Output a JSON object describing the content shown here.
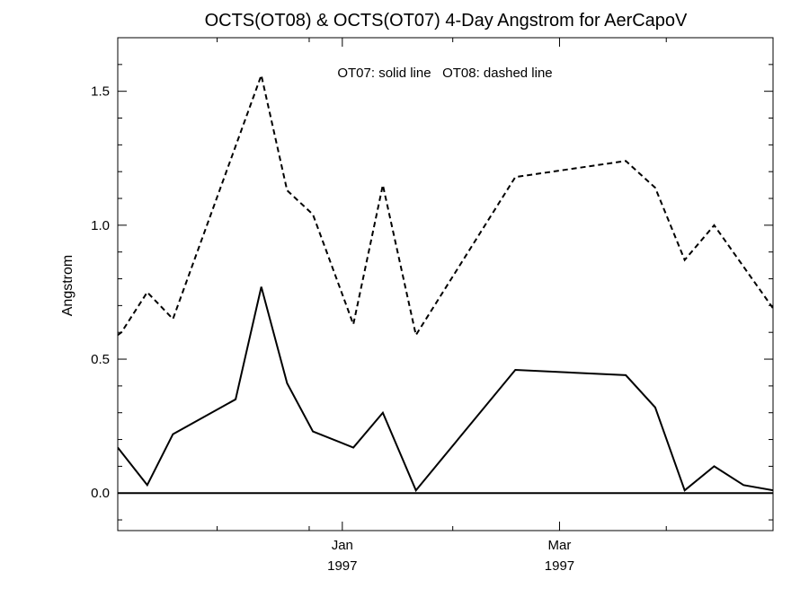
{
  "chart_data": {
    "type": "line",
    "title": "OCTS(OT08) & OCTS(OT07) 4-Day Angstrom for AerCapoV",
    "ylabel": "Angstrom",
    "xlabel": "",
    "annotation": "OT07: solid line   OT08: dashed line",
    "ylim": [
      -0.14,
      1.7
    ],
    "y_ticks": [
      {
        "value": 0.0,
        "label": "0.0"
      },
      {
        "value": 0.5,
        "label": "0.5"
      },
      {
        "value": 1.0,
        "label": "1.0"
      },
      {
        "value": 1.5,
        "label": "1.5"
      }
    ],
    "xlim": [
      "1996-11-01",
      "1997-04-28"
    ],
    "x_ticks": [
      {
        "date": "1997-01-01",
        "label": "Jan",
        "sublabel": "1997"
      },
      {
        "date": "1997-03-01",
        "label": "Mar",
        "sublabel": "1997"
      }
    ],
    "x_minor_ticks": [
      "1996-11-28",
      "1996-12-23",
      "1997-01-31",
      "1997-03-30"
    ],
    "zero_line": true,
    "series": [
      {
        "name": "OT07",
        "style": "solid",
        "color": "#000000",
        "points": [
          {
            "x": "1996-11-01",
            "y": 0.17
          },
          {
            "x": "1996-11-09",
            "y": 0.03
          },
          {
            "x": "1996-11-16",
            "y": 0.22
          },
          {
            "x": "1996-12-03",
            "y": 0.35
          },
          {
            "x": "1996-12-10",
            "y": 0.77
          },
          {
            "x": "1996-12-17",
            "y": 0.41
          },
          {
            "x": "1996-12-24",
            "y": 0.23
          },
          {
            "x": "1997-01-04",
            "y": 0.17
          },
          {
            "x": "1997-01-12",
            "y": 0.3
          },
          {
            "x": "1997-01-21",
            "y": 0.01
          },
          {
            "x": "1997-02-17",
            "y": 0.46
          },
          {
            "x": "1997-03-19",
            "y": 0.44
          },
          {
            "x": "1997-03-27",
            "y": 0.32
          },
          {
            "x": "1997-04-04",
            "y": 0.01
          },
          {
            "x": "1997-04-12",
            "y": 0.1
          },
          {
            "x": "1997-04-20",
            "y": 0.03
          },
          {
            "x": "1997-04-28",
            "y": 0.01
          }
        ]
      },
      {
        "name": "OT08",
        "style": "dashed",
        "color": "#000000",
        "points": [
          {
            "x": "1996-11-01",
            "y": 0.59
          },
          {
            "x": "1996-11-02",
            "y": 0.6
          },
          {
            "x": "1996-11-09",
            "y": 0.75
          },
          {
            "x": "1996-11-16",
            "y": 0.65
          },
          {
            "x": "1996-12-10",
            "y": 1.56
          },
          {
            "x": "1996-12-17",
            "y": 1.13
          },
          {
            "x": "1996-12-24",
            "y": 1.04
          },
          {
            "x": "1997-01-04",
            "y": 0.63
          },
          {
            "x": "1997-01-12",
            "y": 1.15
          },
          {
            "x": "1997-01-21",
            "y": 0.59
          },
          {
            "x": "1997-02-17",
            "y": 1.18
          },
          {
            "x": "1997-03-19",
            "y": 1.24
          },
          {
            "x": "1997-03-27",
            "y": 1.14
          },
          {
            "x": "1997-04-04",
            "y": 0.87
          },
          {
            "x": "1997-04-12",
            "y": 1.0
          },
          {
            "x": "1997-04-28",
            "y": 0.69
          }
        ]
      }
    ]
  }
}
